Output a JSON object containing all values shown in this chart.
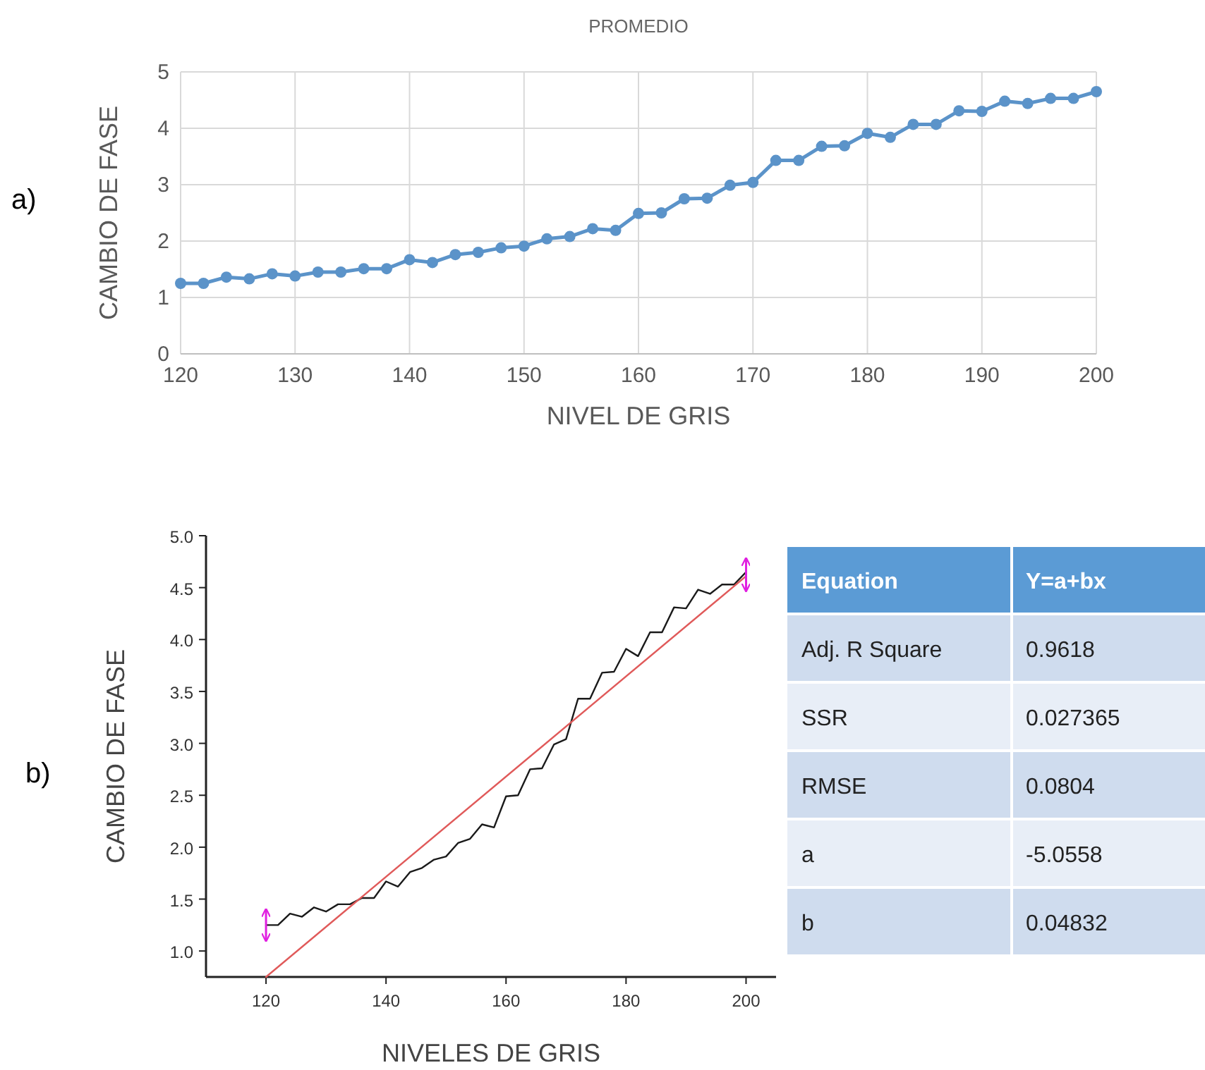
{
  "chart_data": [
    {
      "type": "line",
      "title": "PROMEDIO",
      "xlabel": "NIVEL DE GRIS",
      "ylabel": "CAMBIO DE FASE",
      "annotations": [
        "a)"
      ],
      "x": [
        120,
        122,
        124,
        126,
        128,
        130,
        132,
        134,
        136,
        138,
        140,
        142,
        144,
        146,
        148,
        150,
        152,
        154,
        156,
        158,
        160,
        162,
        164,
        166,
        168,
        170,
        172,
        174,
        176,
        178,
        180,
        182,
        184,
        186,
        188,
        190,
        192,
        194,
        196,
        198,
        200
      ],
      "series": [
        {
          "color": "#5b93c9",
          "values": [
            1.25,
            1.25,
            1.36,
            1.33,
            1.42,
            1.38,
            1.45,
            1.45,
            1.51,
            1.51,
            1.67,
            1.62,
            1.76,
            1.8,
            1.88,
            1.91,
            2.04,
            2.08,
            2.22,
            2.19,
            2.49,
            2.5,
            2.75,
            2.76,
            2.99,
            3.04,
            3.43,
            3.43,
            3.68,
            3.69,
            3.91,
            3.84,
            4.07,
            4.07,
            4.31,
            4.3,
            4.48,
            4.44,
            4.53,
            4.53,
            4.65
          ]
        }
      ],
      "xlim": [
        120,
        200
      ],
      "xticks": [
        120,
        130,
        140,
        150,
        160,
        170,
        180,
        190,
        200
      ],
      "ylim": [
        0,
        5
      ],
      "yticks": [
        0,
        1,
        2,
        3,
        4,
        5
      ],
      "grid": true,
      "marker": "circle"
    },
    {
      "type": "line",
      "xlabel": "NIVELES DE GRIS",
      "ylabel": "CAMBIO DE FASE",
      "annotations": [
        "b)"
      ],
      "x": [
        120,
        122,
        124,
        126,
        128,
        130,
        132,
        134,
        136,
        138,
        140,
        142,
        144,
        146,
        148,
        150,
        152,
        154,
        156,
        158,
        160,
        162,
        164,
        166,
        168,
        170,
        172,
        174,
        176,
        178,
        180,
        182,
        184,
        186,
        188,
        190,
        192,
        194,
        196,
        198,
        200
      ],
      "series": [
        {
          "color": "#1a1a1a",
          "errors": [
            [
              1.1,
              1.4
            ],
            null,
            null,
            null,
            null,
            null,
            null,
            null,
            null,
            null,
            null,
            null,
            null,
            null,
            null,
            null,
            null,
            null,
            null,
            null,
            null,
            null,
            null,
            null,
            null,
            null,
            null,
            null,
            null,
            null,
            null,
            null,
            null,
            null,
            null,
            null,
            null,
            null,
            null,
            null,
            [
              4.47,
              4.78
            ]
          ],
          "values": [
            1.25,
            1.25,
            1.36,
            1.33,
            1.42,
            1.38,
            1.45,
            1.45,
            1.51,
            1.51,
            1.67,
            1.62,
            1.76,
            1.8,
            1.88,
            1.91,
            2.04,
            2.08,
            2.22,
            2.19,
            2.49,
            2.5,
            2.75,
            2.76,
            2.99,
            3.04,
            3.43,
            3.43,
            3.68,
            3.69,
            3.91,
            3.84,
            4.07,
            4.07,
            4.31,
            4.3,
            4.48,
            4.44,
            4.53,
            4.53,
            4.65
          ]
        },
        {
          "type": "line",
          "color": "#e05a5a",
          "x": [
            120,
            200
          ],
          "values": [
            0.75,
            4.61
          ]
        }
      ],
      "xlim": [
        110,
        205
      ],
      "xticks": [
        120,
        140,
        160,
        180,
        200
      ],
      "ylim": [
        0.75,
        5
      ],
      "yticks": [
        {
          "value": 1,
          "label": "1.0"
        },
        {
          "value": 1.5,
          "label": "1.5"
        },
        {
          "value": 2,
          "label": "2.0"
        },
        {
          "value": 2.5,
          "label": "2.5"
        },
        {
          "value": 3,
          "label": "3.0"
        },
        {
          "value": 3.5,
          "label": "3.5"
        },
        {
          "value": 4,
          "label": "4.0"
        },
        {
          "value": 4.5,
          "label": "4.5"
        },
        {
          "value": 5,
          "label": "5.0"
        }
      ],
      "grid": false,
      "marker": "none"
    },
    {
      "type": "other",
      "categories": [
        "Equation",
        "Adj. R Square",
        "SSR",
        "RMSE",
        "a",
        "b"
      ],
      "cell_labels": [
        [
          "Y=a+bx"
        ],
        [
          "0.9618"
        ],
        [
          "0.027365"
        ],
        [
          "0.0804"
        ],
        [
          "-5.0558"
        ],
        [
          "0.04832"
        ]
      ]
    }
  ]
}
